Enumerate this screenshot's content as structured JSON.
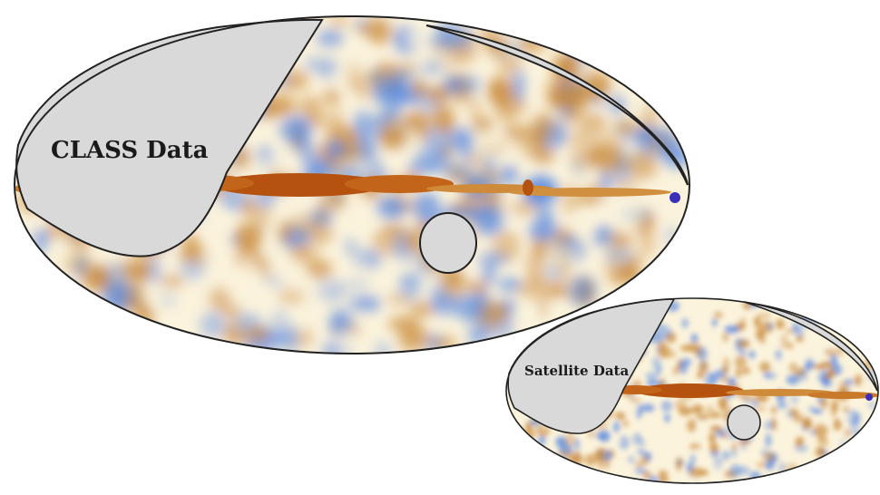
{
  "maps": [
    {
      "id": "class",
      "label": "CLASS Data",
      "mask_color": "#d9d9d9",
      "outline_color": "#222222"
    },
    {
      "id": "satellite",
      "label": "Satellite Data",
      "mask_color": "#d9d9d9",
      "outline_color": "#222222"
    }
  ],
  "palette": {
    "background": "#fbf3dc",
    "warm": "#c98a3a",
    "hot": "#b5520f",
    "cold": "#5b8be0",
    "source": "#3b2fb8"
  }
}
